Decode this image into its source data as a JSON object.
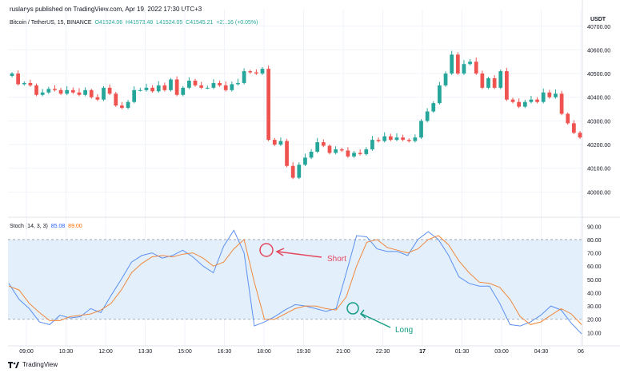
{
  "header": {
    "publisher": "ruslanys published on TradingView.com, Apr 19, 2022 17:30 UTC+3",
    "symbol": "Bitcoin / TetherUS, 15, BINANCE",
    "ohlc": {
      "o": "O41524.06",
      "h": "H41573.48",
      "l": "L41524.05",
      "c": "C41545.21",
      "change": "+21.16 (+0.05%)"
    },
    "currency": "USDT"
  },
  "stoch": {
    "label": "Stoch (14, 3, 3)",
    "k_value": "85.08",
    "d_value": "89.00",
    "k_color": "#5b8ff0",
    "d_color": "#f0883e"
  },
  "annotations": {
    "short": {
      "label": "Short",
      "color": "#e5465c"
    },
    "long": {
      "label": "Long",
      "color": "#149b84"
    }
  },
  "footer": {
    "brand": "TradingView"
  },
  "colors": {
    "up": "#26a69a",
    "down": "#ef5350",
    "band": "#e3f0fc"
  },
  "chart_data": [
    {
      "type": "candlestick",
      "ylim": [
        39900,
        40770
      ],
      "yticks": [
        "40700.00",
        "40600.00",
        "40500.00",
        "40400.00",
        "40300.00",
        "40200.00",
        "40100.00",
        "40000.00"
      ],
      "xticks": [
        "09:00",
        "10:30",
        "12:00",
        "13:30",
        "15:00",
        "16:30",
        "18:00",
        "19:30",
        "21:00",
        "22:30",
        "17",
        "01:30",
        "03:00",
        "04:30",
        "06"
      ],
      "closes": [
        40500,
        40455,
        40460,
        40450,
        40410,
        40420,
        40435,
        40430,
        40415,
        40430,
        40420,
        40410,
        40430,
        40400,
        40390,
        40440,
        40415,
        40365,
        40355,
        40380,
        40430,
        40430,
        40440,
        40425,
        40450,
        40430,
        40475,
        40410,
        40440,
        40470,
        40450,
        40440,
        40440,
        40460,
        40450,
        40430,
        40455,
        40460,
        40510,
        40505,
        40500,
        40520,
        40220,
        40200,
        40215,
        40110,
        40060,
        40115,
        40145,
        40170,
        40210,
        40195,
        40165,
        40180,
        40175,
        40150,
        40165,
        40160,
        40180,
        40220,
        40215,
        40235,
        40220,
        40230,
        40220,
        40215,
        40230,
        40300,
        40340,
        40375,
        40450,
        40500,
        40580,
        40500,
        40540,
        40550,
        40500,
        40440,
        40480,
        40440,
        40510,
        40390,
        40380,
        40360,
        40380,
        40390,
        40380,
        40420,
        40400,
        40415,
        40330,
        40290,
        40250,
        40230
      ]
    },
    {
      "type": "line",
      "name": "Stoch (14, 3, 3)",
      "ylim": [
        0,
        95
      ],
      "yticks": [
        "90.00",
        "80.00",
        "70.00",
        "60.00",
        "50.00",
        "40.00",
        "30.00",
        "20.00",
        "10.00"
      ],
      "upper_band": 80,
      "lower_band": 20,
      "series": [
        {
          "name": "%K",
          "values": [
            47,
            35,
            28,
            18,
            16,
            23,
            21,
            22,
            28,
            25,
            38,
            50,
            63,
            68,
            70,
            66,
            68,
            72,
            67,
            60,
            55,
            75,
            87,
            70,
            15,
            18,
            22,
            27,
            31,
            30,
            28,
            26,
            28,
            55,
            83,
            82,
            73,
            71,
            71,
            68,
            80,
            86,
            80,
            68,
            52,
            47,
            45,
            45,
            32,
            16,
            15,
            18,
            23,
            30,
            27,
            17,
            9
          ]
        },
        {
          "name": "%D",
          "values": [
            45,
            42,
            32,
            25,
            19,
            19,
            22,
            23,
            24,
            27,
            32,
            42,
            55,
            62,
            67,
            68,
            67,
            69,
            70,
            66,
            60,
            63,
            73,
            80,
            48,
            20,
            20,
            24,
            28,
            30,
            30,
            28,
            27,
            37,
            60,
            78,
            80,
            74,
            72,
            70,
            73,
            80,
            83,
            76,
            64,
            55,
            48,
            47,
            44,
            35,
            22,
            16,
            18,
            23,
            28,
            24,
            16
          ]
        }
      ]
    }
  ]
}
